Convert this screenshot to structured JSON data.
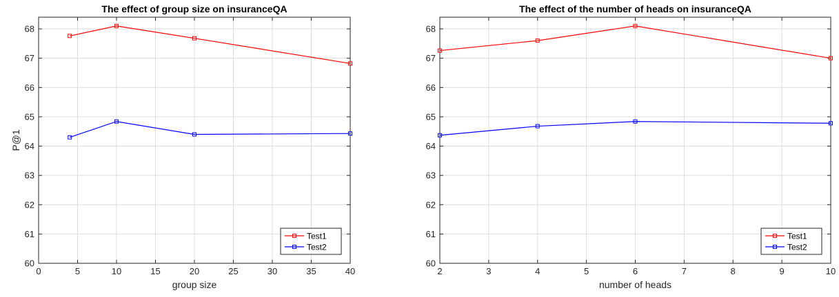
{
  "chart_data": [
    {
      "type": "line",
      "title": "The effect of group size on insuranceQA",
      "xlabel": "group size",
      "ylabel": "P@1",
      "xlim": [
        0,
        40
      ],
      "ylim": [
        60,
        68.4
      ],
      "xticks": [
        0,
        5,
        10,
        15,
        20,
        25,
        30,
        35,
        40
      ],
      "yticks": [
        60,
        61,
        62,
        63,
        64,
        65,
        66,
        67,
        68
      ],
      "grid": true,
      "legend": "bottom-right",
      "series": [
        {
          "name": "Test1",
          "color": "#ff0000",
          "x": [
            4,
            10,
            20,
            40
          ],
          "y": [
            67.76,
            68.1,
            67.68,
            66.82
          ]
        },
        {
          "name": "Test2",
          "color": "#0000ff",
          "x": [
            4,
            10,
            20,
            40
          ],
          "y": [
            64.3,
            64.84,
            64.4,
            64.43
          ]
        }
      ]
    },
    {
      "type": "line",
      "title": "The effect of the number of heads on insuranceQA",
      "xlabel": "number of heads",
      "ylabel": "P@1",
      "xlim": [
        2,
        10
      ],
      "ylim": [
        60,
        68.4
      ],
      "xticks": [
        2,
        3,
        4,
        5,
        6,
        7,
        8,
        9,
        10
      ],
      "yticks": [
        60,
        61,
        62,
        63,
        64,
        65,
        66,
        67,
        68
      ],
      "grid": true,
      "legend": "bottom-right",
      "series": [
        {
          "name": "Test1",
          "color": "#ff0000",
          "x": [
            2,
            4,
            6,
            10
          ],
          "y": [
            67.26,
            67.6,
            68.1,
            67.0
          ]
        },
        {
          "name": "Test2",
          "color": "#0000ff",
          "x": [
            2,
            4,
            6,
            10
          ],
          "y": [
            64.37,
            64.68,
            64.84,
            64.78
          ]
        }
      ]
    }
  ]
}
